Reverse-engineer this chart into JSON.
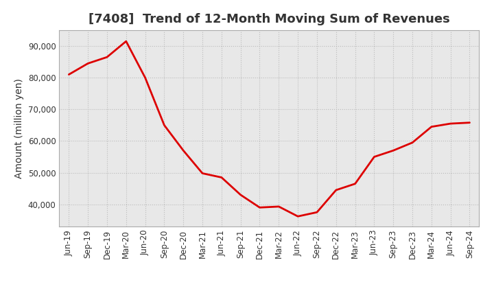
{
  "title": "[7408]  Trend of 12-Month Moving Sum of Revenues",
  "ylabel": "Amount (million yen)",
  "line_color": "#dd0000",
  "background_color": "#ffffff",
  "plot_bg_color": "#e8e8e8",
  "grid_color": "#bbbbbb",
  "labels": [
    "Jun-19",
    "Sep-19",
    "Dec-19",
    "Mar-20",
    "Jun-20",
    "Sep-20",
    "Dec-20",
    "Mar-21",
    "Jun-21",
    "Sep-21",
    "Dec-21",
    "Mar-22",
    "Jun-22",
    "Sep-22",
    "Dec-22",
    "Mar-23",
    "Jun-23",
    "Sep-23",
    "Dec-23",
    "Mar-24",
    "Jun-24",
    "Sep-24"
  ],
  "values": [
    81000,
    84500,
    86500,
    91500,
    80000,
    65000,
    57000,
    49800,
    48500,
    43000,
    39000,
    39300,
    36200,
    37500,
    44500,
    46500,
    55000,
    57000,
    59500,
    64500,
    65500,
    65800
  ],
  "ylim": [
    33000,
    95000
  ],
  "yticks": [
    40000,
    50000,
    60000,
    70000,
    80000,
    90000
  ],
  "ytick_labels": [
    "40,000",
    "50,000",
    "60,000",
    "70,000",
    "80,000",
    "90,000"
  ],
  "linewidth": 2.0,
  "title_fontsize": 13,
  "tick_fontsize": 8.5,
  "ylabel_fontsize": 10
}
